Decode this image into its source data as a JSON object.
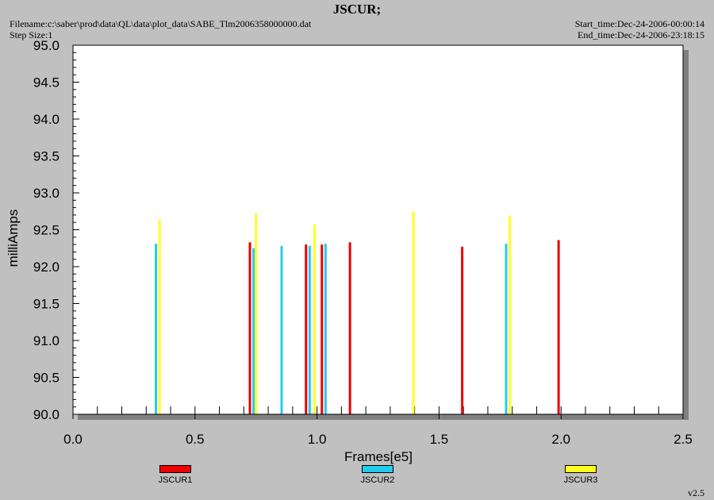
{
  "header": {
    "title": "JSCUR;",
    "filename": "Filename:c:\\saber\\prod\\data\\QL\\data\\plot_data\\SABE_Tlm2006358000000.dat",
    "step_size": "Step Size:1",
    "start_time": "Start_time:Dec-24-2006-00:00:14",
    "end_time": "End_time:Dec-24-2006-23:18:15"
  },
  "footer": {
    "version": "v2.5"
  },
  "chart_data": {
    "type": "bar",
    "title": "JSCUR;",
    "xlabel": "Frames[e5]",
    "ylabel": "milliAmps",
    "xlim": [
      0.0,
      2.5
    ],
    "ylim": [
      90.0,
      95.0
    ],
    "xticks": [
      "0.0",
      "0.5",
      "1.0",
      "1.5",
      "2.0",
      "2.5"
    ],
    "yticks": [
      "90.0",
      "90.5",
      "91.0",
      "91.5",
      "92.0",
      "92.5",
      "93.0",
      "93.5",
      "94.0",
      "94.5",
      "95.0"
    ],
    "grid": false,
    "legend_position": "bottom",
    "series": [
      {
        "name": "JSCUR1",
        "color": "#ee0000",
        "x": [
          0.725,
          0.955,
          1.02,
          1.135,
          1.595,
          1.99
        ],
        "y": [
          92.33,
          92.3,
          92.3,
          92.33,
          92.27,
          92.36
        ]
      },
      {
        "name": "JSCUR2",
        "color": "#22ccee",
        "x": [
          0.34,
          0.74,
          0.855,
          0.97,
          1.035,
          1.775
        ],
        "y": [
          92.31,
          92.25,
          92.28,
          92.28,
          92.31,
          92.31
        ]
      },
      {
        "name": "JSCUR3",
        "color": "#ffff22",
        "x": [
          0.355,
          0.75,
          0.99,
          1.395,
          1.79
        ],
        "y": [
          92.64,
          92.72,
          92.57,
          92.75,
          92.69
        ]
      }
    ]
  }
}
